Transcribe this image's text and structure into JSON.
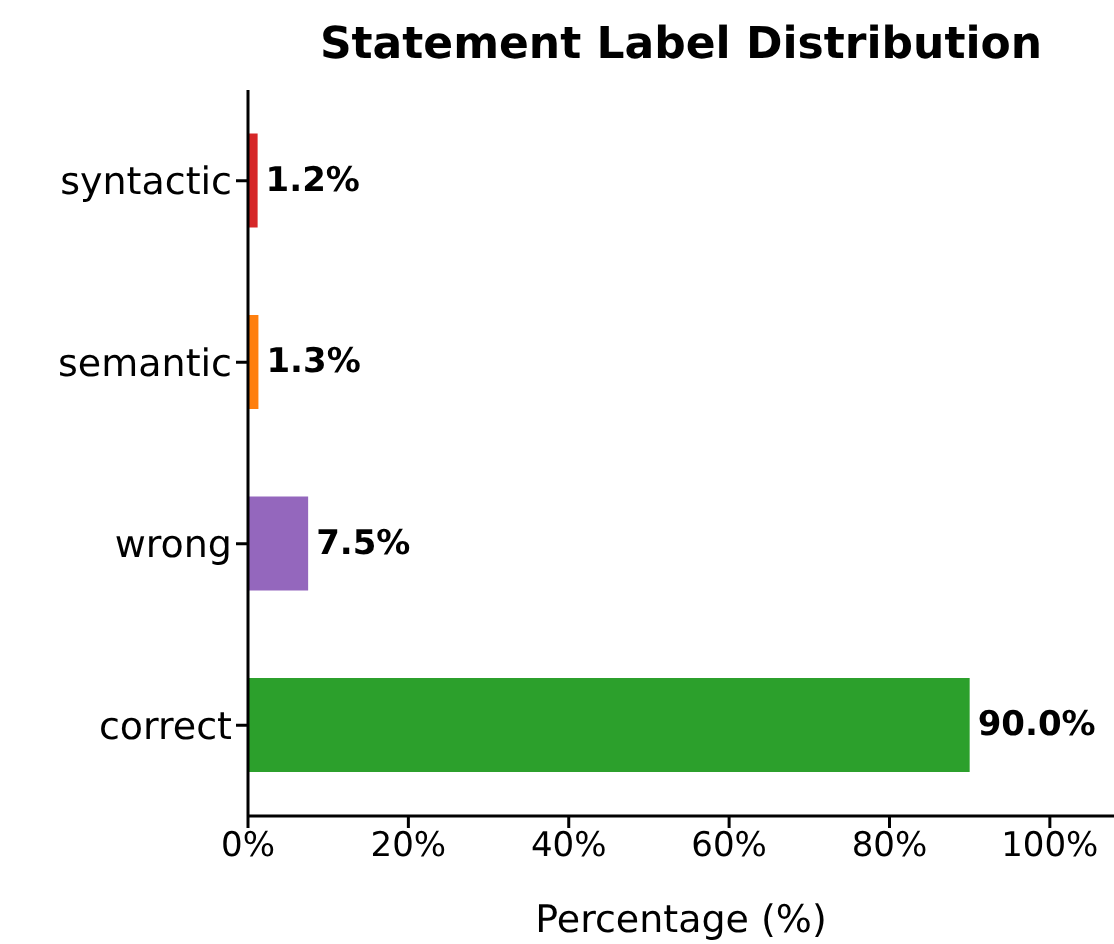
{
  "chart_data": {
    "type": "bar",
    "orientation": "horizontal",
    "title": "Statement Label Distribution",
    "xlabel": "Percentage (%)",
    "categories": [
      "syntactic",
      "semantic",
      "wrong",
      "correct"
    ],
    "values": [
      1.2,
      1.3,
      7.5,
      90.0
    ],
    "colors": [
      "#d62728",
      "#ff7f0e",
      "#9467bd",
      "#2ca02c"
    ],
    "value_labels": [
      "1.2%",
      "1.3%",
      "7.5%",
      "90.0%"
    ],
    "xlim": [
      0,
      108
    ],
    "xticks": [
      {
        "value": 0,
        "label": "0%"
      },
      {
        "value": 20,
        "label": "20%"
      },
      {
        "value": 40,
        "label": "40%"
      },
      {
        "value": 60,
        "label": "60%"
      },
      {
        "value": 80,
        "label": "80%"
      },
      {
        "value": 100,
        "label": "100%"
      }
    ]
  }
}
